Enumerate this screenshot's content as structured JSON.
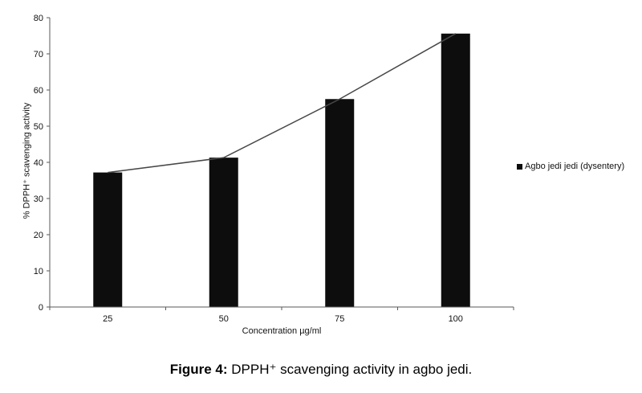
{
  "chart_data": {
    "type": "bar",
    "categories": [
      "25",
      "50",
      "75",
      "100"
    ],
    "series": [
      {
        "name": "Agbo jedi jedi (dysentery)",
        "values": [
          37.2,
          41.3,
          57.5,
          75.6
        ]
      }
    ],
    "overlay_line": true,
    "title": "",
    "xlabel": "Concentration µg/ml",
    "ylabel": "% DPPH⁺ scavenging activity",
    "ylim": [
      0,
      80
    ],
    "ytick_step": 10,
    "grid": false,
    "legend_position": "right",
    "bar_color": "#0d0d0d",
    "line_color": "#474747",
    "axis_color": "#5a5a5a"
  },
  "legend": {
    "label": "Agbo jedi jedi (dysentery)",
    "marker_color": "#0d0d0d"
  },
  "caption": {
    "prefix": "Figure 4:",
    "text": " DPPH⁺ scavenging activity in agbo jedi."
  }
}
